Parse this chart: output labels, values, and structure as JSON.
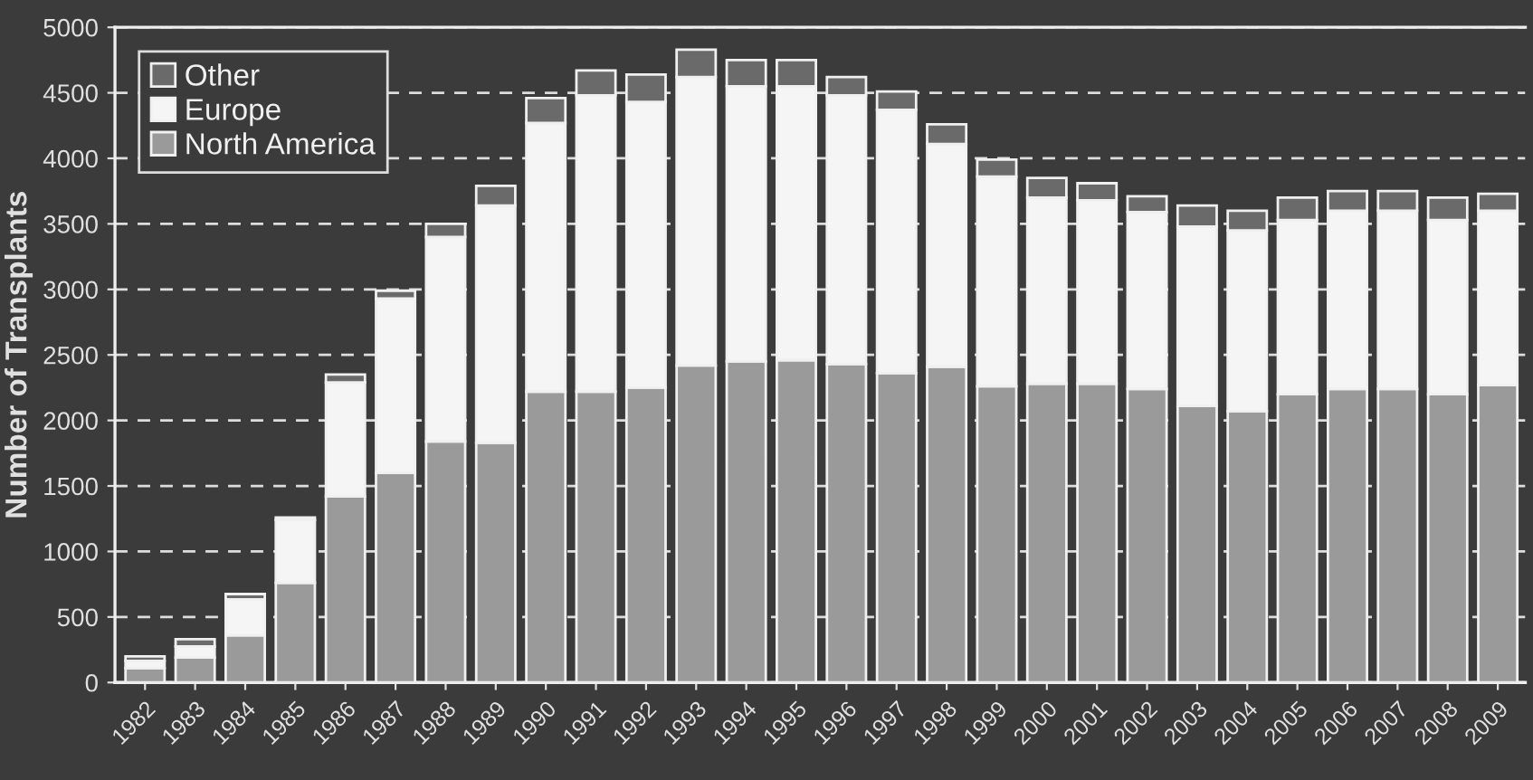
{
  "chart_data": {
    "type": "bar",
    "stacked": true,
    "ylabel": "Number of Transplants",
    "categories": [
      "1982",
      "1983",
      "1984",
      "1985",
      "1986",
      "1987",
      "1988",
      "1989",
      "1990",
      "1991",
      "1992",
      "1993",
      "1994",
      "1995",
      "1996",
      "1997",
      "1998",
      "1999",
      "2000",
      "2001",
      "2002",
      "2003",
      "2004",
      "2005",
      "2006",
      "2007",
      "2008",
      "2009"
    ],
    "series": [
      {
        "name": "North America",
        "color": "#9a9a9a",
        "values": [
          110,
          190,
          360,
          760,
          1420,
          1600,
          1840,
          1830,
          2220,
          2220,
          2250,
          2420,
          2450,
          2460,
          2430,
          2360,
          2410,
          2260,
          2280,
          2280,
          2240,
          2110,
          2070,
          2200,
          2240,
          2240,
          2200,
          2270
        ]
      },
      {
        "name": "Europe",
        "color": "#f5f5f5",
        "values": [
          55,
          85,
          275,
          480,
          870,
          1330,
          1560,
          1810,
          2050,
          2260,
          2180,
          2200,
          2100,
          2090,
          2050,
          2010,
          1700,
          1600,
          1420,
          1400,
          1350,
          1370,
          1380,
          1330,
          1360,
          1360,
          1330,
          1330
        ]
      },
      {
        "name": "Other",
        "color": "#6a6a6a",
        "values": [
          35,
          55,
          40,
          20,
          60,
          60,
          100,
          150,
          190,
          190,
          210,
          210,
          200,
          200,
          140,
          140,
          150,
          130,
          150,
          130,
          120,
          160,
          150,
          170,
          150,
          150,
          170,
          130
        ]
      }
    ],
    "ylim": [
      0,
      5000
    ],
    "yticks": [
      0,
      500,
      1000,
      1500,
      2000,
      2500,
      3000,
      3500,
      4000,
      4500,
      5000
    ],
    "grid": "y",
    "legend": "top left"
  }
}
